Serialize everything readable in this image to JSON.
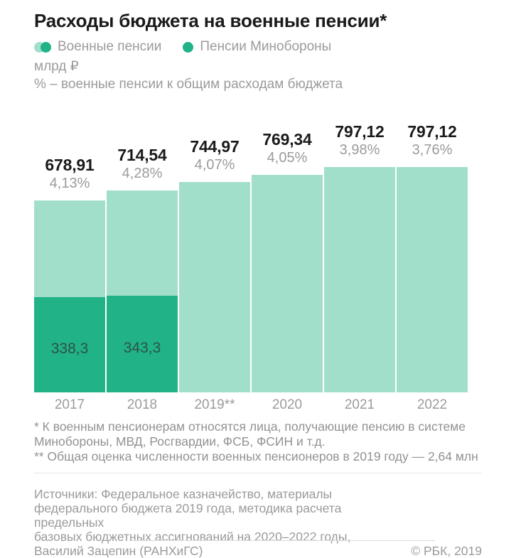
{
  "header": {
    "title": "Расходы бюджета на военные пенсии*",
    "units_line": "млрд ₽"
  },
  "legend": {
    "items": [
      {
        "label": "Военные пенсии",
        "marker": "double-circle",
        "colors": [
          "#a2dfcb",
          "#21b287"
        ]
      },
      {
        "label": "Пенсии Минобороны",
        "marker": "circle",
        "colors": [
          "#21b287"
        ]
      }
    ]
  },
  "chart_data": {
    "type": "bar",
    "title": "Расходы бюджета на военные пенсии*",
    "unit": "млрд ₽",
    "categories": [
      "2017",
      "2018",
      "2019**",
      "2020",
      "2021",
      "2022"
    ],
    "series": [
      {
        "name": "Военные пенсии",
        "color": "#a2dfcb",
        "values": [
          678.91,
          714.54,
          744.97,
          769.34,
          797.12,
          797.12
        ],
        "display": [
          "678,91",
          "714,54",
          "744,97",
          "769,34",
          "797,12",
          "797,12"
        ]
      },
      {
        "name": "Пенсии Минобороны",
        "color": "#21b287",
        "values": [
          338.3,
          343.3,
          null,
          null,
          null,
          null
        ],
        "display": [
          "338,3",
          "343,3",
          null,
          null,
          null,
          null
        ]
      }
    ],
    "percent_of_budget": {
      "note": "% – военные пенсии к общим расходам бюджета",
      "values": [
        4.13,
        4.28,
        4.07,
        4.05,
        3.98,
        3.76
      ],
      "display": [
        "4,13%",
        "4,28%",
        "4,07%",
        "4,05%",
        "3,98%",
        "3,76%"
      ]
    },
    "ylim": [
      0,
      797.12
    ],
    "grid": false,
    "legend_position": "top",
    "value_label_color": "#1a1a1a",
    "percent_label_color": "#9b9b9b",
    "inner_label_color": "#2b5347"
  },
  "footnotes": {
    "lines": [
      "* К военным пенсионерам относятся лица, получающие пенсию в системе",
      "Минобороны, МВД, Росгвардии, ФСБ, ФСИН и т.д.",
      "** Общая оценка численности военных пенсионеров в 2019 году — 2,64 млн"
    ]
  },
  "sources": {
    "lines": [
      "Источники: Федеральное казначейство, материалы",
      "федерального бюджета 2019 года, методика расчета предельных",
      "базовых бюджетных ассигнований на 2020–2022 годы,",
      "Василий Зацепин (РАНХиГС)"
    ],
    "copyright": "© РБК, 2019"
  }
}
